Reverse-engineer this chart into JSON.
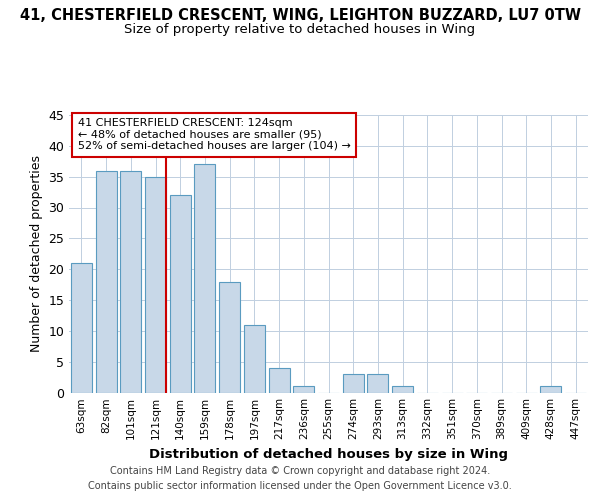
{
  "title1": "41, CHESTERFIELD CRESCENT, WING, LEIGHTON BUZZARD, LU7 0TW",
  "title2": "Size of property relative to detached houses in Wing",
  "xlabel": "Distribution of detached houses by size in Wing",
  "ylabel": "Number of detached properties",
  "categories": [
    "63sqm",
    "82sqm",
    "101sqm",
    "121sqm",
    "140sqm",
    "159sqm",
    "178sqm",
    "197sqm",
    "217sqm",
    "236sqm",
    "255sqm",
    "274sqm",
    "293sqm",
    "313sqm",
    "332sqm",
    "351sqm",
    "370sqm",
    "389sqm",
    "409sqm",
    "428sqm",
    "447sqm"
  ],
  "values": [
    21,
    36,
    36,
    35,
    32,
    37,
    18,
    11,
    4,
    1,
    0,
    3,
    3,
    1,
    0,
    0,
    0,
    0,
    0,
    1,
    0
  ],
  "bar_color": "#c8d8e8",
  "bar_edge_color": "#5a9bc0",
  "vline_x_index": 3,
  "vline_color": "#cc0000",
  "annotation_text": "41 CHESTERFIELD CRESCENT: 124sqm\n← 48% of detached houses are smaller (95)\n52% of semi-detached houses are larger (104) →",
  "annotation_box_color": "#ffffff",
  "annotation_box_edge": "#cc0000",
  "ylim": [
    0,
    45
  ],
  "yticks": [
    0,
    5,
    10,
    15,
    20,
    25,
    30,
    35,
    40,
    45
  ],
  "footer1": "Contains HM Land Registry data © Crown copyright and database right 2024.",
  "footer2": "Contains public sector information licensed under the Open Government Licence v3.0.",
  "background_color": "#ffffff",
  "grid_color": "#c0cfe0"
}
